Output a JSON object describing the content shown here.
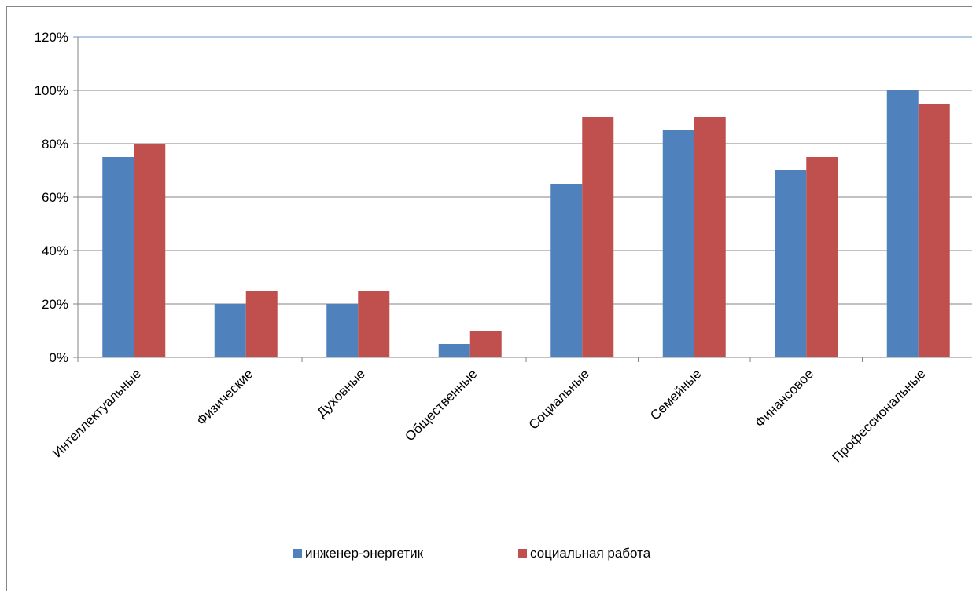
{
  "chart_data": {
    "type": "bar",
    "categories": [
      "Интеллектуальные",
      "Физические",
      "Духовные",
      "Общественные",
      "Социальные",
      "Семейные",
      "Финансовое",
      "Профессиональные"
    ],
    "series": [
      {
        "name": "инженер-энергетик",
        "color": "#4f81bd",
        "values": [
          75,
          20,
          20,
          5,
          65,
          85,
          70,
          100
        ]
      },
      {
        "name": "социальная работа",
        "color": "#c0504d",
        "values": [
          80,
          25,
          25,
          10,
          90,
          90,
          75,
          95
        ]
      }
    ],
    "ylim": [
      0,
      120
    ],
    "y_ticks": [
      "0%",
      "20%",
      "40%",
      "60%",
      "80%",
      "100%",
      "120%"
    ],
    "grid": true,
    "legend_position": "bottom",
    "title": "",
    "xlabel": "",
    "ylabel": ""
  }
}
